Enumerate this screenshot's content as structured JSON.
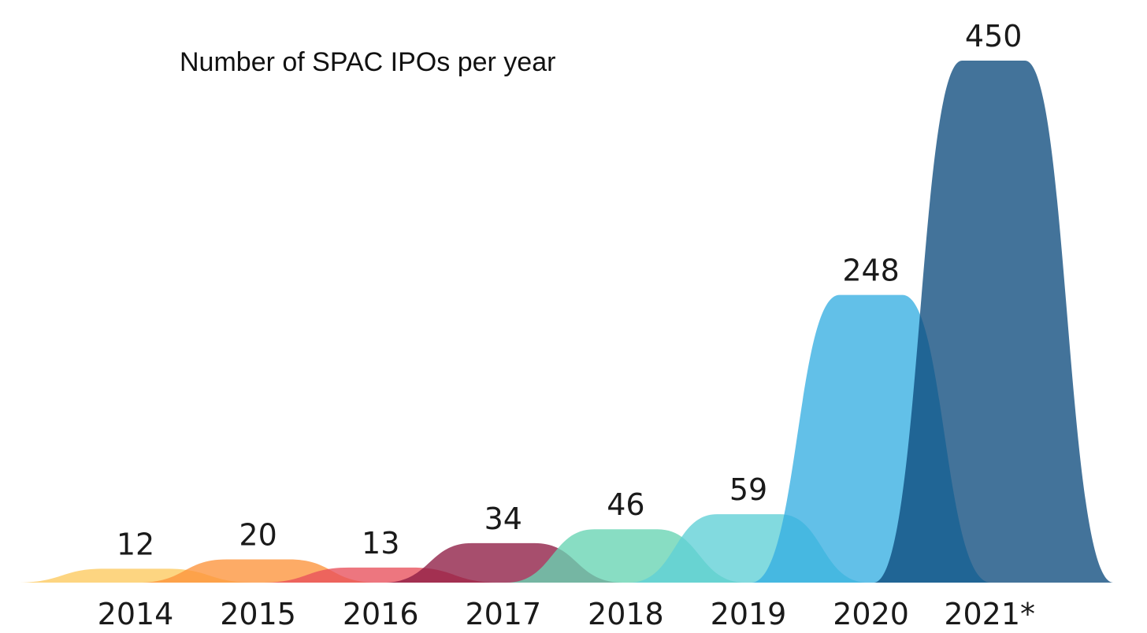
{
  "chart_data": {
    "type": "area",
    "title": "Number of SPAC IPOs per year",
    "xlabel": "",
    "ylabel": "",
    "categories": [
      "2014",
      "2015",
      "2016",
      "2017",
      "2018",
      "2019",
      "2020",
      "2021*"
    ],
    "values": [
      12,
      20,
      13,
      34,
      46,
      59,
      248,
      450
    ],
    "value_labels": [
      "12",
      "20",
      "13",
      "34",
      "46",
      "59",
      "248",
      "450"
    ],
    "colors": [
      "#fdc95e",
      "#fd943b",
      "#e8505b",
      "#8e1c44",
      "#67d3b2",
      "#5fcfd6",
      "#36aee2",
      "#0e4c7e"
    ],
    "ylim": [
      0,
      450
    ],
    "grid": false,
    "legend": "none"
  }
}
